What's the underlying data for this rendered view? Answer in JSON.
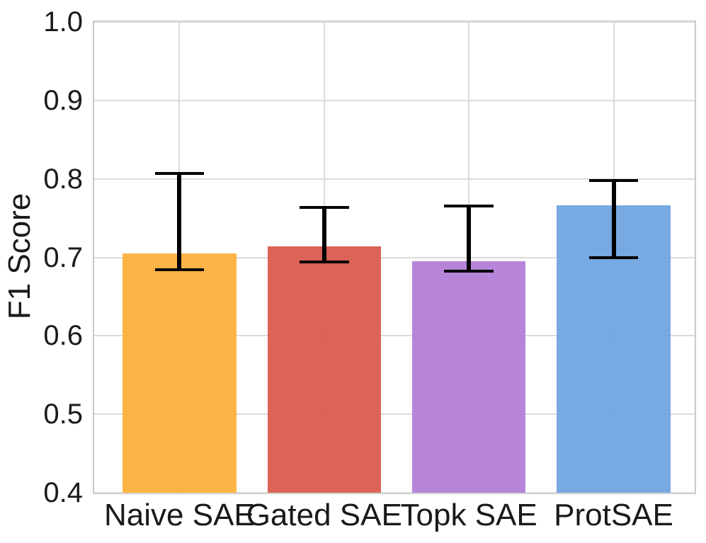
{
  "chart_data": {
    "type": "bar",
    "title": "",
    "xlabel": "",
    "ylabel": "F1 Score",
    "categories": [
      "Naive SAE",
      "Gated SAE",
      "Topk SAE",
      "ProtSAE"
    ],
    "values": [
      0.705,
      0.714,
      0.695,
      0.766
    ],
    "error_low": [
      0.684,
      0.694,
      0.682,
      0.7
    ],
    "error_high": [
      0.807,
      0.764,
      0.765,
      0.798
    ],
    "bar_colors": [
      "#FDAE38",
      "#D8574B",
      "#B07CD6",
      "#6DA3E0"
    ],
    "error_bar_color": "#000000",
    "ylim": [
      0.4,
      1.0
    ],
    "yticks": [
      0.4,
      0.5,
      0.6,
      0.7,
      0.8,
      0.9,
      1.0
    ],
    "ytick_labels": [
      "0.4",
      "0.5",
      "0.6",
      "0.7",
      "0.8",
      "0.9",
      "1.0"
    ],
    "grid": true,
    "grid_color": "#DBDBDB",
    "spine_color": "#C9C9C9",
    "text_color": "#1A1A1A",
    "background": "#FFFFFF",
    "legend_position": "none"
  }
}
